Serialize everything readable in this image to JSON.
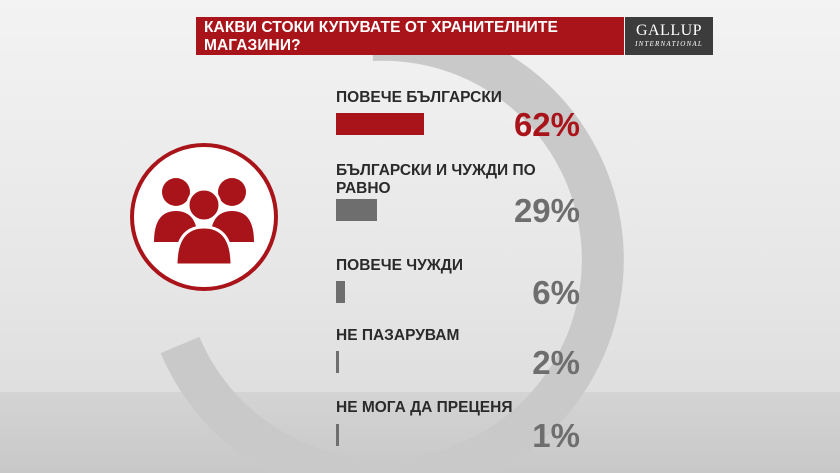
{
  "header": {
    "title": "КАКВИ СТОКИ КУПУВАТЕ ОТ ХРАНИТЕЛНИТЕ МАГАЗИНИ?"
  },
  "logo": {
    "main": "GALLUP",
    "sub": "INTERNATIONAL"
  },
  "icon": "people-group-icon",
  "colors": {
    "accent": "#a8141a",
    "bar_gray": "#6e6e6e",
    "pct_gray": "#6e6e6e",
    "text": "#2a2a2a"
  },
  "chart_data": {
    "type": "bar",
    "orientation": "horizontal",
    "title": "КАКВИ СТОКИ КУПУВАТЕ ОТ ХРАНИТЕЛНИТЕ МАГАЗИНИ?",
    "categories": [
      "ПОВЕЧЕ БЪЛГАРСКИ",
      "БЪЛГАРСКИ И ЧУЖДИ ПО РАВНО",
      "ПОВЕЧЕ ЧУЖДИ",
      "НЕ ПАЗАРУВАМ",
      "НЕ МОГА ДА ПРЕЦЕНЯ"
    ],
    "values": [
      62,
      29,
      6,
      2,
      1
    ],
    "value_labels": [
      "62%",
      "29%",
      "6%",
      "2%",
      "1%"
    ],
    "unit": "%",
    "grid": false,
    "legend": "none"
  }
}
